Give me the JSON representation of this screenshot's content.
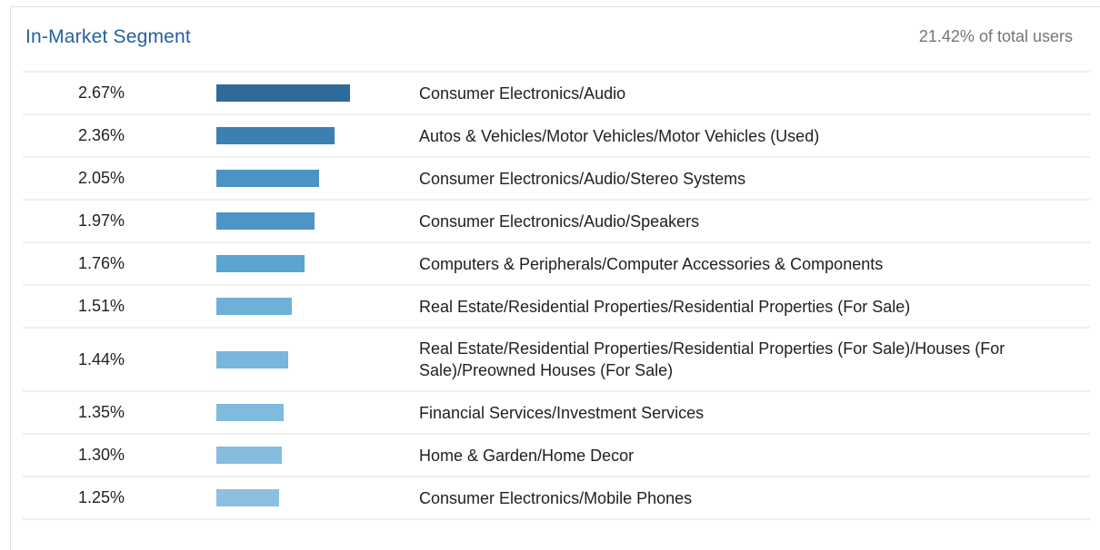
{
  "header": {
    "title": "In-Market Segment",
    "total_users": "21.42% of total users"
  },
  "chart_data": {
    "type": "bar",
    "orientation": "horizontal",
    "title": "In-Market Segment",
    "subtitle": "21.42% of total users",
    "unit": "% of total users",
    "xlim": [
      0,
      2.67
    ],
    "grid": false,
    "legend": "none",
    "categories": [
      "Consumer Electronics/Audio",
      "Autos & Vehicles/Motor Vehicles/Motor Vehicles (Used)",
      "Consumer Electronics/Audio/Stereo Systems",
      "Consumer Electronics/Audio/Speakers",
      "Computers & Peripherals/Computer Accessories & Components",
      "Real Estate/Residential Properties/Residential Properties (For Sale)",
      "Real Estate/Residential Properties/Residential Properties (For Sale)/Houses (For Sale)/Preowned Houses (For Sale)",
      "Financial Services/Investment Services",
      "Home & Garden/Home Decor",
      "Consumer Electronics/Mobile Phones"
    ],
    "values": [
      2.67,
      2.36,
      2.05,
      1.97,
      1.76,
      1.51,
      1.44,
      1.35,
      1.3,
      1.25
    ],
    "value_labels": [
      "2.67%",
      "2.36%",
      "2.05%",
      "1.97%",
      "1.76%",
      "1.51%",
      "1.44%",
      "1.35%",
      "1.30%",
      "1.25%"
    ],
    "bar_colors": [
      "#2e6b9b",
      "#3a80b2",
      "#4a93c4",
      "#4d95c6",
      "#5ba4d0",
      "#6fb0d9",
      "#78b6dc",
      "#80badd",
      "#86bddf",
      "#8cc0e1"
    ]
  },
  "colors": {
    "title_blue": "#24609f",
    "muted_text": "#757575",
    "row_text": "#212121",
    "separator": "#efefef",
    "card_border": "#e0e0e0"
  }
}
